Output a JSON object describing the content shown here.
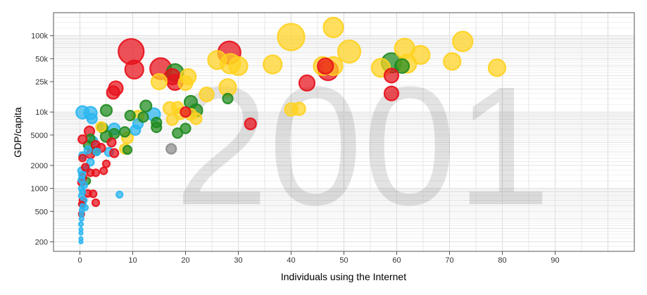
{
  "chart_data": {
    "type": "scatter",
    "title": "",
    "year_label": "2001",
    "xlabel": "Individuals using the Internet",
    "ylabel": "GDP/capita",
    "xlim": [
      -5,
      105
    ],
    "ylim": [
      150,
      200000
    ],
    "y_scale": "log",
    "grid": true,
    "x_ticks": [
      0,
      10,
      20,
      30,
      40,
      50,
      60,
      70,
      80,
      90
    ],
    "y_ticks": [
      {
        "value": 200,
        "label": "200"
      },
      {
        "value": 500,
        "label": "500"
      },
      {
        "value": 1000,
        "label": "1000"
      },
      {
        "value": 2000,
        "label": "2000"
      },
      {
        "value": 5000,
        "label": "5000"
      },
      {
        "value": 10000,
        "label": "10k"
      },
      {
        "value": 25000,
        "label": "25k"
      },
      {
        "value": 50000,
        "label": "50k"
      },
      {
        "value": 100000,
        "label": "100k"
      }
    ],
    "colors": {
      "cyan": "#29b6f0",
      "green": "#1f8a1f",
      "red": "#e8101a",
      "yellow": "#ffd21f",
      "gray": "#8c8c8c"
    },
    "points": [
      {
        "x": 0.2,
        "y": 200,
        "r": 2.5,
        "c": "cyan"
      },
      {
        "x": 0.2,
        "y": 220,
        "r": 2.5,
        "c": "cyan"
      },
      {
        "x": 0.2,
        "y": 260,
        "r": 2.5,
        "c": "cyan"
      },
      {
        "x": 0.2,
        "y": 290,
        "r": 2.5,
        "c": "cyan"
      },
      {
        "x": 0.2,
        "y": 340,
        "r": 3,
        "c": "cyan"
      },
      {
        "x": 0.3,
        "y": 400,
        "r": 3,
        "c": "cyan"
      },
      {
        "x": 0.3,
        "y": 460,
        "r": 3,
        "c": "cyan"
      },
      {
        "x": 0.4,
        "y": 520,
        "r": 3.5,
        "c": "cyan"
      },
      {
        "x": 0.5,
        "y": 580,
        "r": 3.5,
        "c": "cyan"
      },
      {
        "x": 0.6,
        "y": 620,
        "r": 4,
        "c": "cyan"
      },
      {
        "x": 0.8,
        "y": 700,
        "r": 4,
        "c": "cyan"
      },
      {
        "x": 1.0,
        "y": 560,
        "r": 4,
        "c": "cyan"
      },
      {
        "x": 0.3,
        "y": 800,
        "r": 4,
        "c": "cyan"
      },
      {
        "x": 0.5,
        "y": 900,
        "r": 4,
        "c": "cyan"
      },
      {
        "x": 0.3,
        "y": 1000,
        "r": 4,
        "c": "cyan"
      },
      {
        "x": 0.8,
        "y": 1100,
        "r": 4.5,
        "c": "cyan"
      },
      {
        "x": 0.3,
        "y": 1300,
        "r": 4.5,
        "c": "cyan"
      },
      {
        "x": 0.4,
        "y": 1500,
        "r": 4.5,
        "c": "cyan"
      },
      {
        "x": 0.3,
        "y": 1700,
        "r": 5,
        "c": "cyan"
      },
      {
        "x": 0.5,
        "y": 2700,
        "r": 5,
        "c": "cyan"
      },
      {
        "x": 1.2,
        "y": 1800,
        "r": 5,
        "c": "cyan"
      },
      {
        "x": 1.5,
        "y": 3200,
        "r": 5,
        "c": "cyan"
      },
      {
        "x": 2.0,
        "y": 2200,
        "r": 5,
        "c": "cyan"
      },
      {
        "x": 2.5,
        "y": 4200,
        "r": 6,
        "c": "cyan"
      },
      {
        "x": 3.2,
        "y": 3000,
        "r": 5,
        "c": "cyan"
      },
      {
        "x": 5.5,
        "y": 3000,
        "r": 6,
        "c": "cyan"
      },
      {
        "x": 7.5,
        "y": 830,
        "r": 4.5,
        "c": "cyan"
      },
      {
        "x": 0.5,
        "y": 9900,
        "r": 9,
        "c": "cyan"
      },
      {
        "x": 2.0,
        "y": 9700,
        "r": 9,
        "c": "cyan"
      },
      {
        "x": 2.3,
        "y": 8200,
        "r": 7,
        "c": "cyan"
      },
      {
        "x": 6.5,
        "y": 6000,
        "r": 8,
        "c": "cyan"
      },
      {
        "x": 10.5,
        "y": 5800,
        "r": 7,
        "c": "cyan"
      },
      {
        "x": 11.0,
        "y": 7000,
        "r": 7,
        "c": "cyan"
      },
      {
        "x": 14.0,
        "y": 9300,
        "r": 9,
        "c": "cyan"
      },
      {
        "x": 1.3,
        "y": 1250,
        "r": 5,
        "c": "green"
      },
      {
        "x": 1.5,
        "y": 3700,
        "r": 6,
        "c": "green"
      },
      {
        "x": 2.0,
        "y": 4500,
        "r": 6,
        "c": "green"
      },
      {
        "x": 3.0,
        "y": 3100,
        "r": 6,
        "c": "green"
      },
      {
        "x": 4.3,
        "y": 6200,
        "r": 7,
        "c": "green"
      },
      {
        "x": 5.0,
        "y": 4800,
        "r": 8,
        "c": "green"
      },
      {
        "x": 5.0,
        "y": 10500,
        "r": 8,
        "c": "green"
      },
      {
        "x": 6.5,
        "y": 5200,
        "r": 7,
        "c": "green"
      },
      {
        "x": 8.5,
        "y": 5500,
        "r": 7,
        "c": "green"
      },
      {
        "x": 9.0,
        "y": 3200,
        "r": 6,
        "c": "green"
      },
      {
        "x": 9.5,
        "y": 9000,
        "r": 7,
        "c": "green"
      },
      {
        "x": 12.0,
        "y": 8600,
        "r": 7,
        "c": "green"
      },
      {
        "x": 12.5,
        "y": 12000,
        "r": 8,
        "c": "green"
      },
      {
        "x": 14.5,
        "y": 6300,
        "r": 7,
        "c": "green"
      },
      {
        "x": 14.5,
        "y": 7300,
        "r": 7,
        "c": "green"
      },
      {
        "x": 18.0,
        "y": 33000,
        "r": 12,
        "c": "green"
      },
      {
        "x": 18.5,
        "y": 5300,
        "r": 7,
        "c": "green"
      },
      {
        "x": 20.0,
        "y": 6100,
        "r": 7,
        "c": "green"
      },
      {
        "x": 21.0,
        "y": 13500,
        "r": 9,
        "c": "green"
      },
      {
        "x": 22.0,
        "y": 10500,
        "r": 9,
        "c": "green"
      },
      {
        "x": 28.0,
        "y": 15000,
        "r": 7,
        "c": "green"
      },
      {
        "x": 59.0,
        "y": 44000,
        "r": 14,
        "c": "green"
      },
      {
        "x": 61.0,
        "y": 40000,
        "r": 10,
        "c": "green"
      },
      {
        "x": 0.3,
        "y": 460,
        "r": 4,
        "c": "red"
      },
      {
        "x": 0.3,
        "y": 620,
        "r": 4,
        "c": "red"
      },
      {
        "x": 0.5,
        "y": 700,
        "r": 4.5,
        "c": "red"
      },
      {
        "x": 0.3,
        "y": 1200,
        "r": 5,
        "c": "red"
      },
      {
        "x": 0.6,
        "y": 1400,
        "r": 5,
        "c": "red"
      },
      {
        "x": 1.0,
        "y": 1900,
        "r": 5,
        "c": "red"
      },
      {
        "x": 0.5,
        "y": 2500,
        "r": 5,
        "c": "red"
      },
      {
        "x": 1.5,
        "y": 860,
        "r": 5,
        "c": "red"
      },
      {
        "x": 2.5,
        "y": 850,
        "r": 5,
        "c": "red"
      },
      {
        "x": 2.0,
        "y": 1600,
        "r": 5,
        "c": "red"
      },
      {
        "x": 3.0,
        "y": 1600,
        "r": 5,
        "c": "red"
      },
      {
        "x": 3.0,
        "y": 650,
        "r": 5,
        "c": "red"
      },
      {
        "x": 4.5,
        "y": 1700,
        "r": 5,
        "c": "red"
      },
      {
        "x": 5.0,
        "y": 2100,
        "r": 5,
        "c": "red"
      },
      {
        "x": 2.0,
        "y": 2800,
        "r": 6,
        "c": "red"
      },
      {
        "x": 3.0,
        "y": 3700,
        "r": 6,
        "c": "red"
      },
      {
        "x": 0.5,
        "y": 4400,
        "r": 6,
        "c": "red"
      },
      {
        "x": 1.8,
        "y": 5600,
        "r": 7,
        "c": "red"
      },
      {
        "x": 4.0,
        "y": 3400,
        "r": 6,
        "c": "red"
      },
      {
        "x": 6.0,
        "y": 4000,
        "r": 6,
        "c": "red"
      },
      {
        "x": 6.5,
        "y": 2900,
        "r": 6,
        "c": "red"
      },
      {
        "x": 6.3,
        "y": 18000,
        "r": 9,
        "c": "red"
      },
      {
        "x": 6.8,
        "y": 20500,
        "r": 10,
        "c": "red"
      },
      {
        "x": 9.7,
        "y": 62000,
        "r": 18,
        "c": "red"
      },
      {
        "x": 10.3,
        "y": 36000,
        "r": 13,
        "c": "red"
      },
      {
        "x": 15.3,
        "y": 37000,
        "r": 15,
        "c": "red"
      },
      {
        "x": 17.5,
        "y": 29000,
        "r": 11,
        "c": "red"
      },
      {
        "x": 18.0,
        "y": 24500,
        "r": 11,
        "c": "red"
      },
      {
        "x": 20.0,
        "y": 10000,
        "r": 7,
        "c": "red"
      },
      {
        "x": 28.3,
        "y": 60000,
        "r": 16,
        "c": "red"
      },
      {
        "x": 32.3,
        "y": 7000,
        "r": 8,
        "c": "red"
      },
      {
        "x": 43.0,
        "y": 24000,
        "r": 11,
        "c": "red"
      },
      {
        "x": 46.5,
        "y": 40000,
        "r": 11,
        "c": "red"
      },
      {
        "x": 47.0,
        "y": 35000,
        "r": 14,
        "c": "red"
      },
      {
        "x": 59.0,
        "y": 30000,
        "r": 10,
        "c": "red"
      },
      {
        "x": 59.0,
        "y": 17500,
        "r": 10,
        "c": "red"
      },
      {
        "x": 17.3,
        "y": 3300,
        "r": 7,
        "c": "gray"
      },
      {
        "x": 4.0,
        "y": 6400,
        "r": 7,
        "c": "yellow"
      },
      {
        "x": 8.5,
        "y": 3300,
        "r": 7,
        "c": "yellow"
      },
      {
        "x": 9.0,
        "y": 4600,
        "r": 8,
        "c": "yellow"
      },
      {
        "x": 11.0,
        "y": 8800,
        "r": 8,
        "c": "yellow"
      },
      {
        "x": 15.0,
        "y": 25000,
        "r": 11,
        "c": "yellow"
      },
      {
        "x": 17.0,
        "y": 11200,
        "r": 9,
        "c": "yellow"
      },
      {
        "x": 17.5,
        "y": 8000,
        "r": 8,
        "c": "yellow"
      },
      {
        "x": 18.5,
        "y": 11500,
        "r": 8,
        "c": "yellow"
      },
      {
        "x": 19.0,
        "y": 9500,
        "r": 8,
        "c": "yellow"
      },
      {
        "x": 20.0,
        "y": 24000,
        "r": 10,
        "c": "yellow"
      },
      {
        "x": 20.5,
        "y": 29000,
        "r": 11,
        "c": "yellow"
      },
      {
        "x": 21.0,
        "y": 9300,
        "r": 8,
        "c": "yellow"
      },
      {
        "x": 22.0,
        "y": 8200,
        "r": 8,
        "c": "yellow"
      },
      {
        "x": 24.0,
        "y": 17000,
        "r": 10,
        "c": "yellow"
      },
      {
        "x": 26.0,
        "y": 48000,
        "r": 13,
        "c": "yellow"
      },
      {
        "x": 28.0,
        "y": 21000,
        "r": 12,
        "c": "yellow"
      },
      {
        "x": 28.5,
        "y": 43000,
        "r": 14,
        "c": "yellow"
      },
      {
        "x": 30.0,
        "y": 40000,
        "r": 13,
        "c": "yellow"
      },
      {
        "x": 36.5,
        "y": 42000,
        "r": 13,
        "c": "yellow"
      },
      {
        "x": 40.0,
        "y": 96000,
        "r": 19,
        "c": "yellow"
      },
      {
        "x": 40.0,
        "y": 10800,
        "r": 9,
        "c": "yellow"
      },
      {
        "x": 41.5,
        "y": 11000,
        "r": 9,
        "c": "yellow"
      },
      {
        "x": 46.0,
        "y": 40000,
        "r": 13,
        "c": "yellow"
      },
      {
        "x": 48.0,
        "y": 40000,
        "r": 13,
        "c": "yellow"
      },
      {
        "x": 48.0,
        "y": 128000,
        "r": 14,
        "c": "yellow"
      },
      {
        "x": 51.0,
        "y": 62000,
        "r": 16,
        "c": "yellow"
      },
      {
        "x": 57.0,
        "y": 38000,
        "r": 13,
        "c": "yellow"
      },
      {
        "x": 61.5,
        "y": 68000,
        "r": 14,
        "c": "yellow"
      },
      {
        "x": 62.0,
        "y": 43000,
        "r": 13,
        "c": "yellow"
      },
      {
        "x": 64.5,
        "y": 56000,
        "r": 13,
        "c": "yellow"
      },
      {
        "x": 70.5,
        "y": 46000,
        "r": 12,
        "c": "yellow"
      },
      {
        "x": 72.5,
        "y": 84000,
        "r": 14,
        "c": "yellow"
      },
      {
        "x": 79.0,
        "y": 38000,
        "r": 12,
        "c": "yellow"
      }
    ]
  }
}
